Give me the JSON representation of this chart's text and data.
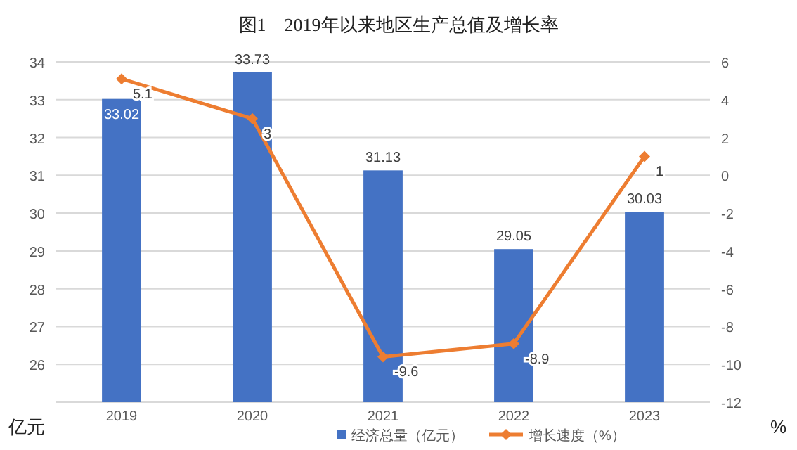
{
  "chart_data": {
    "type": "bar",
    "title": "图1　2019年以来地区生产总值及增长率",
    "ylabel": "亿元",
    "y2label": "%",
    "categories": [
      "2019",
      "2020",
      "2021",
      "2022",
      "2023"
    ],
    "series": [
      {
        "name": "经济总量（亿元）",
        "color": "#4472c4",
        "values": [
          33.02,
          33.73,
          31.13,
          29.05,
          30.03
        ]
      },
      {
        "name": "增长速度（%）",
        "type": "line",
        "axis": "y2",
        "color": "#ed7d31",
        "marker": "diamond",
        "values": [
          5.1,
          3,
          -9.6,
          -8.9,
          1
        ]
      }
    ],
    "ylim": [
      25,
      34
    ],
    "yticks": [
      26,
      27,
      28,
      29,
      30,
      31,
      32,
      33,
      34
    ],
    "y2lim": [
      -12,
      6
    ],
    "y2ticks": [
      -12,
      -10,
      -8,
      -6,
      -4,
      -2,
      0,
      2,
      4,
      6
    ],
    "data_labels": true,
    "grid": "y",
    "legend": "bottom"
  }
}
